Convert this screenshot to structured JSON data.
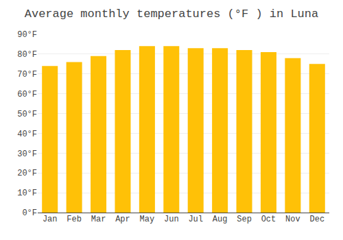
{
  "chart_data": {
    "type": "bar",
    "title": "Average monthly temperatures (°F ) in Luna",
    "categories": [
      "Jan",
      "Feb",
      "Mar",
      "Apr",
      "May",
      "Jun",
      "Jul",
      "Aug",
      "Sep",
      "Oct",
      "Nov",
      "Dec"
    ],
    "values": [
      74,
      76,
      79,
      82,
      84,
      84,
      83,
      83,
      82,
      81,
      78,
      75
    ],
    "color": "#FFC107",
    "ylim": [
      0,
      90
    ],
    "yticks": [
      {
        "value": 0,
        "label": "0°F"
      },
      {
        "value": 10,
        "label": "10°F"
      },
      {
        "value": 20,
        "label": "20°F"
      },
      {
        "value": 30,
        "label": "30°F"
      },
      {
        "value": 40,
        "label": "40°F"
      },
      {
        "value": 50,
        "label": "50°F"
      },
      {
        "value": 60,
        "label": "60°F"
      },
      {
        "value": 70,
        "label": "70°F"
      },
      {
        "value": 80,
        "label": "80°F"
      },
      {
        "value": 90,
        "label": "90°F"
      }
    ],
    "grid": true
  }
}
